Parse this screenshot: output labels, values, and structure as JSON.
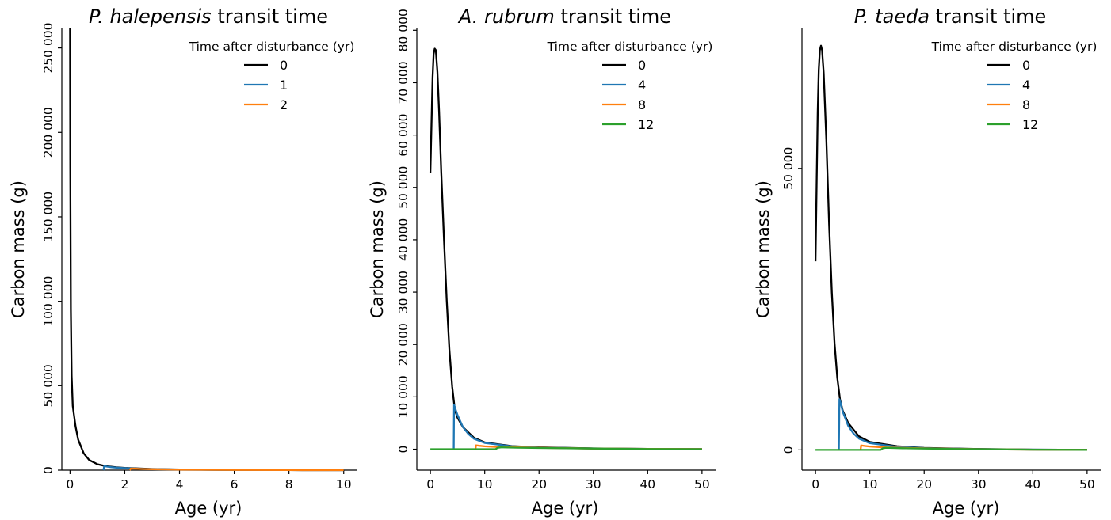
{
  "chart_data": [
    {
      "type": "line",
      "title_species": "P. halepensis",
      "title_rest": "transit time",
      "xlabel": "Age (yr)",
      "ylabel": "Carbon mass (g)",
      "xlim": [
        -0.3,
        10.5
      ],
      "ylim": [
        0,
        262000
      ],
      "x_ticks": [
        0,
        2,
        4,
        6,
        8,
        10
      ],
      "x_tick_labels": [
        "0",
        "2",
        "4",
        "6",
        "8",
        "10"
      ],
      "y_ticks": [
        0,
        50000,
        100000,
        150000,
        200000,
        250000
      ],
      "y_tick_labels": [
        "0",
        "50 000",
        "100 000",
        "150 000",
        "200 000",
        "250 000"
      ],
      "legend_title": "Time after disturbance (yr)",
      "legend_position": "top-right",
      "grid": false,
      "series": [
        {
          "name": "0",
          "color": "#000000",
          "x": [
            0,
            0.01,
            0.03,
            0.06,
            0.1,
            0.2,
            0.3,
            0.5,
            0.7,
            1.0,
            1.3,
            1.7,
            2.0,
            3.0,
            4.0,
            6.0,
            8.0,
            10.0
          ],
          "y": [
            262000,
            180000,
            95000,
            56000,
            38000,
            26000,
            18000,
            10000,
            6000,
            3500,
            2400,
            1700,
            1300,
            700,
            400,
            150,
            60,
            20
          ]
        },
        {
          "name": "1",
          "color": "#1f77b4",
          "x": [
            1.22,
            1.25,
            1.35,
            1.5,
            1.7,
            2.0,
            2.5,
            3.0,
            4.0,
            6.0,
            8.0,
            10.0
          ],
          "y": [
            0,
            2400,
            2100,
            1800,
            1500,
            1200,
            800,
            550,
            320,
            120,
            50,
            15
          ]
        },
        {
          "name": "2",
          "color": "#ff7f0e",
          "x": [
            2.18,
            2.22,
            2.4,
            2.6,
            3.0,
            4.0,
            6.0,
            8.0,
            10.0
          ],
          "y": [
            0,
            950,
            850,
            720,
            550,
            330,
            130,
            50,
            15
          ]
        }
      ]
    },
    {
      "type": "line",
      "title_species": "A. rubrum",
      "title_rest": "transit time",
      "xlabel": "Age (yr)",
      "ylabel": "Carbon mass (g)",
      "xlim": [
        -2.5,
        52.5
      ],
      "ylim": [
        -4000,
        80500
      ],
      "x_ticks": [
        0,
        10,
        20,
        30,
        40,
        50
      ],
      "x_tick_labels": [
        "0",
        "10",
        "20",
        "30",
        "40",
        "50"
      ],
      "y_ticks": [
        0,
        10000,
        20000,
        30000,
        40000,
        50000,
        60000,
        70000,
        80000
      ],
      "y_tick_labels": [
        "0",
        "10 000",
        "20 000",
        "30 000",
        "40 000",
        "50 000",
        "60 000",
        "70 000",
        "80 000"
      ],
      "legend_title": "Time after disturbance (yr)",
      "legend_position": "top-right",
      "grid": false,
      "series": [
        {
          "name": "0",
          "color": "#000000",
          "x": [
            0,
            0.2,
            0.4,
            0.6,
            0.8,
            1.0,
            1.3,
            1.6,
            2.0,
            2.5,
            3.0,
            3.5,
            4.0,
            4.5,
            5.0,
            6.0,
            8.0,
            10.0,
            15.0,
            20.0,
            30.0,
            40.0,
            50.0
          ],
          "y": [
            52800,
            62000,
            71000,
            75500,
            76500,
            76200,
            72000,
            64500,
            53000,
            40000,
            28500,
            19000,
            12000,
            7500,
            6000,
            4200,
            2200,
            1300,
            600,
            350,
            150,
            60,
            20
          ]
        },
        {
          "name": "4",
          "color": "#1f77b4",
          "x": [
            4.3,
            4.35,
            4.5,
            5.0,
            6.0,
            7.0,
            8.0,
            10.0,
            15.0,
            20.0,
            30.0,
            40.0,
            50.0
          ],
          "y": [
            0,
            8500,
            8000,
            6500,
            4200,
            2900,
            2000,
            1200,
            550,
            320,
            130,
            50,
            15
          ]
        },
        {
          "name": "8",
          "color": "#ff7f0e",
          "x": [
            8.3,
            8.4,
            9.0,
            10.0,
            12.0,
            15.0,
            20.0,
            30.0,
            40.0,
            50.0
          ],
          "y": [
            0,
            750,
            650,
            550,
            450,
            380,
            280,
            120,
            45,
            15
          ]
        },
        {
          "name": "12",
          "color": "#2ca02c",
          "x": [
            0,
            12.0,
            12.4,
            13.0,
            16.0,
            20.0,
            25.0,
            30.0,
            40.0,
            50.0
          ],
          "y": [
            0,
            0,
            280,
            350,
            290,
            240,
            180,
            120,
            40,
            10
          ]
        }
      ]
    },
    {
      "type": "line",
      "title_species": "P. taeda",
      "title_rest": "transit time",
      "xlabel": "Age (yr)",
      "ylabel": "Carbon mass (g)",
      "xlim": [
        -2.5,
        52.5
      ],
      "ylim": [
        -3600,
        75000
      ],
      "x_ticks": [
        0,
        10,
        20,
        30,
        40,
        50
      ],
      "x_tick_labels": [
        "0",
        "10",
        "20",
        "30",
        "40",
        "50"
      ],
      "y_ticks": [
        0,
        50000
      ],
      "y_tick_labels": [
        "0",
        "50 000"
      ],
      "legend_title": "Time after disturbance (yr)",
      "legend_position": "top-right",
      "grid": false,
      "series": [
        {
          "name": "0",
          "color": "#000000",
          "x": [
            0,
            0.2,
            0.4,
            0.6,
            0.8,
            1.0,
            1.2,
            1.5,
            2.0,
            2.5,
            3.0,
            3.5,
            4.0,
            4.5,
            5.0,
            6.0,
            8.0,
            10.0,
            15.0,
            20.0,
            30.0,
            40.0,
            50.0
          ],
          "y": [
            33500,
            47000,
            60000,
            67500,
            71000,
            71800,
            71000,
            67000,
            55000,
            40000,
            28000,
            19000,
            12800,
            9000,
            7000,
            4800,
            2400,
            1400,
            650,
            350,
            150,
            60,
            20
          ]
        },
        {
          "name": "4",
          "color": "#1f77b4",
          "x": [
            4.3,
            4.4,
            4.6,
            5.0,
            6.0,
            7.0,
            8.0,
            10.0,
            15.0,
            20.0,
            30.0,
            40.0,
            50.0
          ],
          "y": [
            0,
            9000,
            8400,
            6800,
            4300,
            2900,
            2000,
            1200,
            550,
            320,
            130,
            50,
            15
          ]
        },
        {
          "name": "8",
          "color": "#ff7f0e",
          "x": [
            8.3,
            8.4,
            9.0,
            10.0,
            12.0,
            15.0,
            20.0,
            30.0,
            40.0,
            50.0
          ],
          "y": [
            0,
            800,
            700,
            600,
            480,
            380,
            280,
            120,
            45,
            15
          ]
        },
        {
          "name": "12",
          "color": "#2ca02c",
          "x": [
            0,
            12.0,
            12.4,
            13.0,
            16.0,
            20.0,
            25.0,
            30.0,
            40.0,
            50.0
          ],
          "y": [
            0,
            0,
            300,
            380,
            300,
            240,
            180,
            120,
            40,
            10
          ]
        }
      ]
    }
  ]
}
